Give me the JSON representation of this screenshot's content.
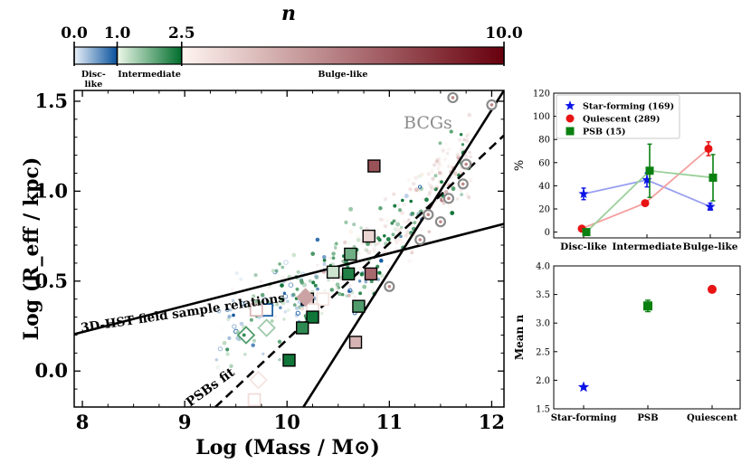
{
  "colorbar": {
    "title": "n",
    "range": [
      0,
      10
    ],
    "ticks": [
      {
        "value": 0,
        "label": "0.0"
      },
      {
        "value": 1,
        "label": "1.0"
      },
      {
        "value": 2.5,
        "label": "2.5"
      },
      {
        "value": 10,
        "label": "10.0"
      }
    ],
    "segments": [
      {
        "from": 0,
        "to": 1,
        "label": "Disc-\nlike",
        "start_color": "#e9f0f8",
        "end_color": "#08519c"
      },
      {
        "from": 1,
        "to": 2.5,
        "label": "Intermediate",
        "start_color": "#edf8e9",
        "end_color": "#006d2c"
      },
      {
        "from": 2.5,
        "to": 10,
        "label": "Bulge-like",
        "start_color": "#fff5f0",
        "end_color": "#67000d"
      }
    ]
  },
  "chart_data": [
    {
      "id": "main",
      "type": "scatter",
      "xlabel": "Log (Mass / M⊙)",
      "ylabel": "Log (R_eff / kpc)",
      "xlim": [
        7.92,
        12.12
      ],
      "ylim": [
        -0.2,
        1.56
      ],
      "xticks": [
        8,
        9,
        10,
        11,
        12
      ],
      "yticks": [
        0.0,
        0.5,
        1.0,
        1.5
      ],
      "ytick_labels": [
        "0.0",
        "0.5",
        "1.0",
        "1.5"
      ],
      "lines": [
        {
          "name": "3D-HST field sample relations",
          "style": "solid",
          "x": [
            7.92,
            12.12
          ],
          "y": [
            0.205,
            0.818
          ]
        },
        {
          "name": "BCG relation",
          "style": "solid",
          "x": [
            10.16,
            12.12
          ],
          "y": [
            -0.2,
            1.56
          ]
        },
        {
          "name": "PSBs fit",
          "style": "dashed",
          "x": [
            9.3,
            12.12
          ],
          "y": [
            -0.2,
            1.31
          ]
        }
      ],
      "annotations": [
        {
          "text": "3D-HST field sample relations",
          "x": 8.0,
          "y": 0.26
        },
        {
          "text": "PSBs fit",
          "x": 9.0,
          "y": -0.19
        },
        {
          "text": "BCGs",
          "x": 11.12,
          "y": 1.33
        }
      ],
      "bcgs": [
        {
          "x": 12.0,
          "y": 1.48
        },
        {
          "x": 11.62,
          "y": 1.52
        },
        {
          "x": 11.75,
          "y": 1.15
        },
        {
          "x": 11.72,
          "y": 1.04
        },
        {
          "x": 11.58,
          "y": 0.96
        },
        {
          "x": 11.5,
          "y": 0.83
        },
        {
          "x": 11.38,
          "y": 0.87
        },
        {
          "x": 11.3,
          "y": 0.73
        },
        {
          "x": 11.0,
          "y": 0.47
        }
      ],
      "psb_squares": [
        {
          "x": 10.85,
          "y": 1.14,
          "n": 7.5
        },
        {
          "x": 10.8,
          "y": 0.75,
          "n": 3.5
        },
        {
          "x": 10.62,
          "y": 0.65,
          "n": 1.8
        },
        {
          "x": 10.45,
          "y": 0.55,
          "n": 1.2
        },
        {
          "x": 10.6,
          "y": 0.54,
          "n": 2.3
        },
        {
          "x": 10.82,
          "y": 0.54,
          "n": 6.8
        },
        {
          "x": 10.2,
          "y": 0.4,
          "n": 4.0
        },
        {
          "x": 10.35,
          "y": 0.4,
          "n": 3.0
        },
        {
          "x": 10.25,
          "y": 0.34,
          "n": 3.2
        },
        {
          "x": 10.7,
          "y": 0.36,
          "n": 2.0
        },
        {
          "x": 10.25,
          "y": 0.3,
          "n": 2.4
        },
        {
          "x": 10.15,
          "y": 0.24,
          "n": 2.2
        },
        {
          "x": 9.8,
          "y": 0.34,
          "n": 0.9
        },
        {
          "x": 9.7,
          "y": 0.34,
          "n": 4.3
        },
        {
          "x": 10.67,
          "y": 0.16,
          "n": 4.5
        },
        {
          "x": 10.02,
          "y": 0.06,
          "n": 2.4
        },
        {
          "x": 9.68,
          "y": -0.16,
          "n": 3.2
        }
      ],
      "psb_diamonds": [
        {
          "x": 10.18,
          "y": 0.41,
          "n": 5.0
        },
        {
          "x": 9.8,
          "y": 0.24,
          "n": 1.5
        },
        {
          "x": 9.6,
          "y": 0.2,
          "n": 2.0
        },
        {
          "x": 9.72,
          "y": -0.05,
          "n": 3.0
        }
      ]
    },
    {
      "id": "top-right",
      "type": "line",
      "ylabel": "%",
      "categories": [
        "Disc-like",
        "Intermediate",
        "Bulge-like"
      ],
      "ylim": [
        -5,
        120
      ],
      "yticks": [
        0,
        20,
        40,
        60,
        80,
        100,
        120
      ],
      "series": [
        {
          "name": "Star-forming",
          "count": "(169)",
          "marker": "star",
          "color": "#0a14e6",
          "line_color": "#9aa0f0",
          "values": [
            33,
            45,
            22
          ],
          "errors": [
            5,
            6,
            3
          ]
        },
        {
          "name": "Quiescent",
          "count": "(289)",
          "marker": "circle",
          "color": "#e81414",
          "line_color": "#f4a0a0",
          "values": [
            3,
            25,
            72
          ],
          "errors": [
            1,
            2,
            6
          ]
        },
        {
          "name": "PSB",
          "count": "(15)",
          "marker": "square",
          "color": "#0a8010",
          "line_color": "#9ad09a",
          "values": [
            0,
            53,
            47
          ],
          "errors": [
            0,
            23,
            20
          ]
        }
      ]
    },
    {
      "id": "bottom-right",
      "type": "scatter",
      "ylabel": "Mean n",
      "categories": [
        "Star-forming",
        "PSB",
        "Quiescent"
      ],
      "ylim": [
        1.5,
        4.0
      ],
      "yticks": [
        1.5,
        2.0,
        2.5,
        3.0,
        3.5,
        4.0
      ],
      "ytick_labels": [
        "1.5",
        "2.0",
        "2.5",
        "3.0",
        "3.5",
        "4.0"
      ],
      "points": [
        {
          "name": "Star-forming",
          "value": 1.88,
          "error": 0.03,
          "marker": "star",
          "color": "#0a14e6"
        },
        {
          "name": "PSB",
          "value": 3.3,
          "error": 0.1,
          "marker": "square",
          "color": "#0a8010"
        },
        {
          "name": "Quiescent",
          "value": 3.59,
          "error": 0.02,
          "marker": "circle",
          "color": "#e81414"
        }
      ]
    }
  ]
}
